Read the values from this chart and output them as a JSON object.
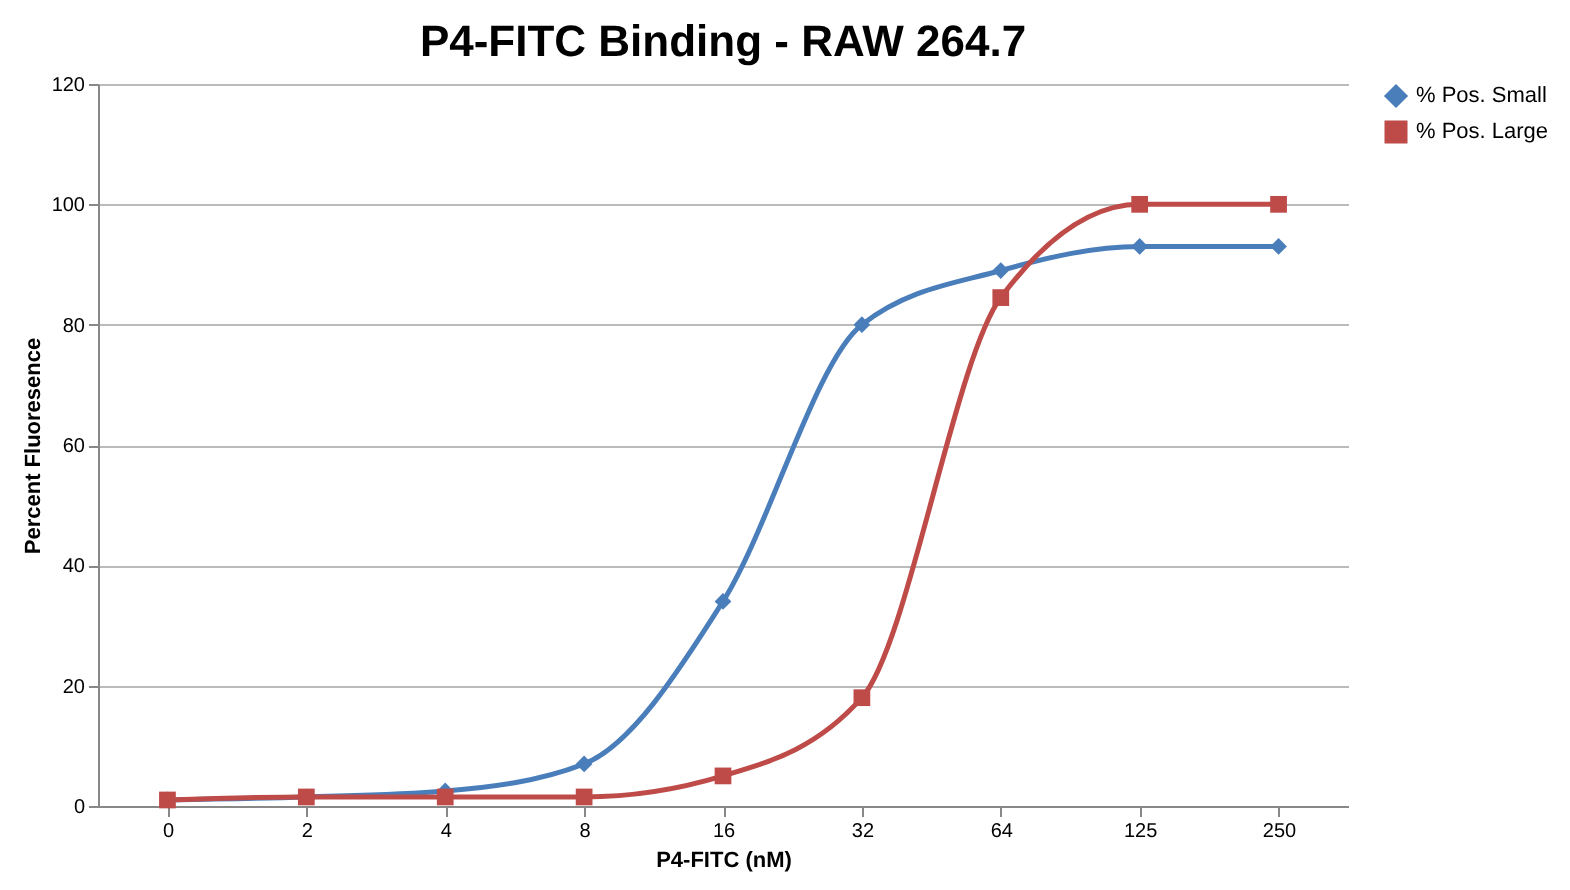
{
  "chart_data": {
    "type": "line",
    "title": "P4-FITC Binding - RAW 264.7",
    "xlabel": "P4-FITC (nM)",
    "ylabel": "Percent Fluoresence",
    "categories": [
      "0",
      "2",
      "4",
      "8",
      "16",
      "32",
      "64",
      "125",
      "250"
    ],
    "series": [
      {
        "name": "% Pos. Small",
        "color": "#4a7ebb",
        "marker": "diamond",
        "values": [
          1,
          1.5,
          2.5,
          7,
          34,
          80,
          89,
          93,
          93
        ]
      },
      {
        "name": "% Pos. Large",
        "color": "#be4b48",
        "marker": "square",
        "values": [
          1,
          1.5,
          1.5,
          1.5,
          5,
          18,
          84.5,
          100,
          100
        ]
      }
    ],
    "ylim": [
      0,
      120
    ],
    "yticks": [
      0,
      20,
      40,
      60,
      80,
      100,
      120
    ],
    "grid": "y",
    "legend": "right",
    "line_style": "solid"
  }
}
